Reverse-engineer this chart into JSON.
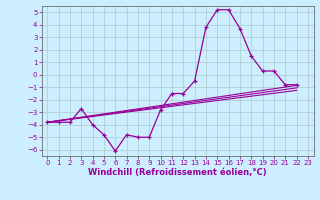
{
  "title": "",
  "xlabel": "Windchill (Refroidissement éolien,°C)",
  "ylabel": "",
  "background_color": "#cceeff",
  "grid_color": "#aacccc",
  "line_color": "#990099",
  "xlim": [
    -0.5,
    23.5
  ],
  "ylim": [
    -6.5,
    5.5
  ],
  "yticks": [
    -6,
    -5,
    -4,
    -3,
    -2,
    -1,
    0,
    1,
    2,
    3,
    4,
    5
  ],
  "xticks": [
    0,
    1,
    2,
    3,
    4,
    5,
    6,
    7,
    8,
    9,
    10,
    11,
    12,
    13,
    14,
    15,
    16,
    17,
    18,
    19,
    20,
    21,
    22,
    23
  ],
  "series1_x": [
    0,
    1,
    2,
    3,
    4,
    5,
    6,
    7,
    8,
    9,
    10,
    11,
    12,
    13,
    14,
    15,
    16,
    17,
    18,
    19,
    20,
    21,
    22
  ],
  "series1_y": [
    -3.8,
    -3.8,
    -3.8,
    -2.7,
    -4.0,
    -4.8,
    -6.1,
    -4.8,
    -5.0,
    -5.0,
    -2.8,
    -1.5,
    -1.5,
    -0.5,
    3.8,
    5.2,
    5.2,
    3.7,
    1.5,
    0.3,
    0.3,
    -0.8,
    -0.8
  ],
  "series2_x": [
    0,
    22
  ],
  "series2_y": [
    -3.8,
    -0.85
  ],
  "series3_x": [
    0,
    22
  ],
  "series3_y": [
    -3.8,
    -1.05
  ],
  "series4_x": [
    0,
    22
  ],
  "series4_y": [
    -3.8,
    -1.25
  ],
  "xlabel_fontsize": 6,
  "tick_fontsize": 5
}
